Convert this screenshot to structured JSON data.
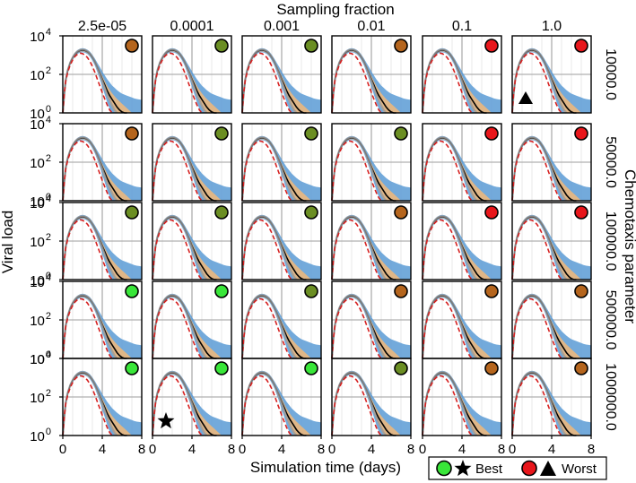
{
  "chart_data": {
    "type": "line",
    "title": "Sampling fraction",
    "xlabel": "Simulation time (days)",
    "ylabel": "Viral load",
    "row_label": "Chemotaxis parameter",
    "columns": [
      "2.5e-05",
      "0.0001",
      "0.001",
      "0.01",
      "0.1",
      "1.0"
    ],
    "rows": [
      "10000.0",
      "50000.0",
      "100000.0",
      "500000.0",
      "1000000.0"
    ],
    "xlim": [
      0,
      8
    ],
    "ylim_log10": [
      0,
      4
    ],
    "x_ticks": [
      "0",
      "4",
      "8"
    ],
    "y_ticks": [
      {
        "base": "10",
        "exp": "0"
      },
      {
        "base": "10",
        "exp": "2"
      },
      {
        "base": "10",
        "exp": "4"
      }
    ],
    "series": [
      {
        "name": "simulation median (black)",
        "color": "#000000",
        "x": [
          0,
          0.15,
          0.3,
          0.5,
          0.75,
          1.0,
          1.25,
          1.5,
          1.75,
          2.0,
          2.25,
          2.5,
          2.75,
          3.0,
          3.25,
          3.5,
          3.75,
          4.0,
          4.25,
          4.5,
          4.75,
          5.0,
          5.25,
          5.5,
          5.75,
          6.0,
          6.25,
          6.5
        ],
        "log10_y": [
          0.0,
          1.0,
          1.7,
          2.2,
          2.6,
          2.85,
          3.05,
          3.17,
          3.24,
          3.26,
          3.24,
          3.17,
          3.06,
          2.88,
          2.65,
          2.38,
          2.07,
          1.75,
          1.45,
          1.15,
          0.9,
          0.7,
          0.5,
          0.3,
          0.15,
          0.05,
          0.0,
          0.0
        ]
      },
      {
        "name": "reference fit (grey)",
        "color": "#9a9a9a",
        "x": [
          0,
          0.15,
          0.3,
          0.5,
          0.75,
          1.0,
          1.25,
          1.5,
          1.75,
          2.0,
          2.25,
          2.5,
          2.75,
          3.0,
          3.25,
          3.5,
          3.75,
          4.0,
          4.25,
          4.5,
          4.75,
          5.0,
          5.25,
          5.5
        ],
        "log10_y": [
          0.0,
          1.0,
          1.72,
          2.22,
          2.62,
          2.88,
          3.08,
          3.2,
          3.27,
          3.29,
          3.27,
          3.2,
          3.08,
          2.9,
          2.66,
          2.36,
          2.02,
          1.66,
          1.3,
          0.95,
          0.65,
          0.38,
          0.15,
          0.0
        ]
      },
      {
        "name": "model (red dashed)",
        "color": "#d62020",
        "x": [
          0,
          0.15,
          0.3,
          0.5,
          0.75,
          1.0,
          1.25,
          1.5,
          1.75,
          2.0,
          2.25,
          2.5,
          2.75,
          3.0,
          3.25,
          3.5,
          3.75,
          4.0,
          4.25,
          4.5,
          4.75,
          5.0
        ],
        "log10_y": [
          0.0,
          1.0,
          1.65,
          2.1,
          2.5,
          2.75,
          2.94,
          3.05,
          3.1,
          3.08,
          3.0,
          2.87,
          2.67,
          2.42,
          2.1,
          1.75,
          1.4,
          1.05,
          0.72,
          0.42,
          0.15,
          0.0
        ]
      }
    ],
    "bands": [
      {
        "name": "outer range (blue)",
        "color": "#5b9bd5",
        "x": [
          0,
          0.15,
          0.3,
          0.5,
          0.75,
          1.0,
          1.25,
          1.5,
          1.75,
          2.0,
          2.25,
          2.5,
          2.75,
          3.0,
          3.25,
          3.5,
          3.75,
          4.0,
          4.25,
          4.5,
          4.75,
          5.0,
          5.25,
          5.5,
          5.75,
          6.0,
          6.25,
          6.5,
          6.75,
          7.0,
          7.25,
          7.5,
          7.75,
          8.0
        ],
        "log10_upper": [
          0.0,
          1.1,
          1.8,
          2.3,
          2.7,
          2.95,
          3.15,
          3.27,
          3.34,
          3.36,
          3.34,
          3.28,
          3.18,
          3.02,
          2.82,
          2.6,
          2.38,
          2.15,
          1.95,
          1.75,
          1.58,
          1.42,
          1.3,
          1.18,
          1.08,
          1.0,
          0.95,
          0.9,
          0.85,
          0.8,
          0.75,
          0.72,
          0.7,
          0.68
        ],
        "log10_lower": [
          0.0,
          0.9,
          1.6,
          2.1,
          2.5,
          2.75,
          2.95,
          3.07,
          3.13,
          3.15,
          3.12,
          3.05,
          2.92,
          2.72,
          2.45,
          2.12,
          1.75,
          1.35,
          0.95,
          0.55,
          0.2,
          0.0,
          0.0,
          0.0,
          0.0,
          0.0,
          0.0,
          0.0,
          0.0,
          0.0,
          0.0,
          0.0,
          0.0,
          0.0
        ]
      },
      {
        "name": "inner range (orange)",
        "color": "#f2b878",
        "x": [
          0,
          0.15,
          0.3,
          0.5,
          0.75,
          1.0,
          1.25,
          1.5,
          1.75,
          2.0,
          2.25,
          2.5,
          2.75,
          3.0,
          3.25,
          3.5,
          3.75,
          4.0,
          4.25,
          4.5,
          4.75,
          5.0,
          5.25,
          5.5,
          5.75,
          6.0,
          6.25,
          6.5,
          6.75,
          7.0
        ],
        "log10_upper": [
          0.0,
          1.05,
          1.75,
          2.25,
          2.65,
          2.9,
          3.1,
          3.22,
          3.29,
          3.31,
          3.29,
          3.22,
          3.11,
          2.94,
          2.72,
          2.47,
          2.2,
          1.92,
          1.65,
          1.4,
          1.2,
          1.02,
          0.86,
          0.72,
          0.6,
          0.48,
          0.36,
          0.24,
          0.12,
          0.0
        ],
        "log10_lower": [
          0.0,
          0.95,
          1.65,
          2.15,
          2.55,
          2.8,
          3.0,
          3.12,
          3.18,
          3.2,
          3.17,
          3.1,
          2.98,
          2.8,
          2.55,
          2.25,
          1.92,
          1.55,
          1.2,
          0.85,
          0.55,
          0.28,
          0.05,
          0.0,
          0.0,
          0.0,
          0.0,
          0.0,
          0.0,
          0.0
        ]
      }
    ],
    "status_colors": {
      "best": "#39e639",
      "worst": "#e8161b",
      "olive": "#6b8e23",
      "brown": "#b5651d"
    },
    "indicators": [
      [
        "brown",
        "olive",
        "olive",
        "brown",
        "worst",
        "worst"
      ],
      [
        "brown",
        "olive",
        "olive",
        "olive",
        "worst",
        "worst"
      ],
      [
        "olive",
        "olive",
        "olive",
        "brown",
        "worst",
        "worst"
      ],
      [
        "best",
        "best",
        "olive",
        "brown",
        "brown",
        "brown"
      ],
      [
        "best",
        "best",
        "best",
        "olive",
        "brown",
        "brown"
      ]
    ],
    "markers": [
      {
        "row": 0,
        "col": 5,
        "shape": "triangle"
      },
      {
        "row": 4,
        "col": 1,
        "shape": "star"
      }
    ],
    "legend": {
      "position": "bottom-right",
      "best_label": "Best",
      "worst_label": "Worst"
    }
  }
}
